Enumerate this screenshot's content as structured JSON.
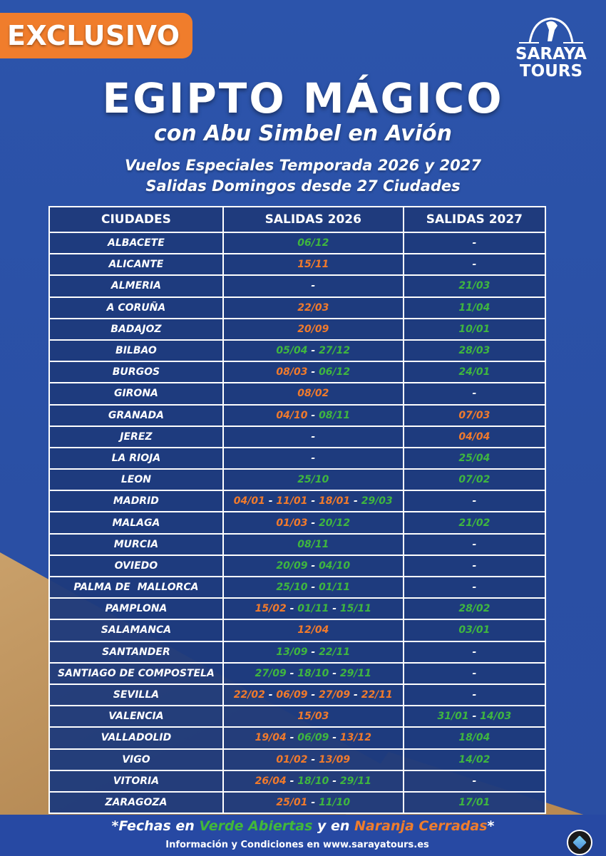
{
  "badge": "EXCLUSIVO",
  "logo": {
    "line1": "SARAYA",
    "line2": "TOURS"
  },
  "title": "EGIPTO MÁGICO",
  "subtitle": "con Abu Simbel en Avión",
  "line1": "Vuelos Especiales Temporada 2026 y 2027",
  "line2": "Salidas Domingos desde 27 Ciudades",
  "colors": {
    "open": "#3fb63f",
    "closed": "#f07a2c",
    "background": "#2a50a6",
    "table": "#1f3b7d"
  },
  "table": {
    "headers": [
      "CIUDADES",
      "SALIDAS 2026",
      "SALIDAS 2027"
    ],
    "rows": [
      {
        "city": "ALBACETE",
        "s2026": [
          [
            "06/12",
            "g"
          ]
        ],
        "s2027": []
      },
      {
        "city": "ALICANTE",
        "s2026": [
          [
            "15/11",
            "o"
          ]
        ],
        "s2027": []
      },
      {
        "city": "ALMERIA",
        "s2026": [],
        "s2027": [
          [
            "21/03",
            "g"
          ]
        ]
      },
      {
        "city": "A CORUÑA",
        "s2026": [
          [
            "22/03",
            "o"
          ]
        ],
        "s2027": [
          [
            "11/04",
            "g"
          ]
        ]
      },
      {
        "city": "BADAJOZ",
        "s2026": [
          [
            "20/09",
            "o"
          ]
        ],
        "s2027": [
          [
            "10/01",
            "g"
          ]
        ]
      },
      {
        "city": "BILBAO",
        "s2026": [
          [
            "05/04",
            "g"
          ],
          [
            "27/12",
            "g"
          ]
        ],
        "s2027": [
          [
            "28/03",
            "g"
          ]
        ]
      },
      {
        "city": "BURGOS",
        "s2026": [
          [
            "08/03",
            "o"
          ],
          [
            "06/12",
            "g"
          ]
        ],
        "s2027": [
          [
            "24/01",
            "g"
          ]
        ]
      },
      {
        "city": "GIRONA",
        "s2026": [
          [
            "08/02",
            "o"
          ]
        ],
        "s2027": []
      },
      {
        "city": "GRANADA",
        "s2026": [
          [
            "04/10",
            "o"
          ],
          [
            "08/11",
            "g"
          ]
        ],
        "s2027": [
          [
            "07/03",
            "o"
          ]
        ]
      },
      {
        "city": "JEREZ",
        "s2026": [],
        "s2027": [
          [
            "04/04",
            "o"
          ]
        ]
      },
      {
        "city": "LA RIOJA",
        "s2026": [],
        "s2027": [
          [
            "25/04",
            "g"
          ]
        ]
      },
      {
        "city": "LEON",
        "s2026": [
          [
            "25/10",
            "g"
          ]
        ],
        "s2027": [
          [
            "07/02",
            "g"
          ]
        ]
      },
      {
        "city": "MADRID",
        "s2026": [
          [
            "04/01",
            "o"
          ],
          [
            "11/01",
            "o"
          ],
          [
            "18/01",
            "o"
          ],
          [
            "29/03",
            "g"
          ]
        ],
        "s2027": []
      },
      {
        "city": "MALAGA",
        "s2026": [
          [
            "01/03",
            "o"
          ],
          [
            "20/12",
            "g"
          ]
        ],
        "s2027": [
          [
            "21/02",
            "g"
          ]
        ]
      },
      {
        "city": "MURCIA",
        "s2026": [
          [
            "08/11",
            "g"
          ]
        ],
        "s2027": []
      },
      {
        "city": "OVIEDO",
        "s2026": [
          [
            "20/09",
            "g"
          ],
          [
            "04/10",
            "g"
          ]
        ],
        "s2027": []
      },
      {
        "city": "PALMA DE  MALLORCA",
        "s2026": [
          [
            "25/10",
            "g"
          ],
          [
            "01/11",
            "g"
          ]
        ],
        "s2027": []
      },
      {
        "city": "PAMPLONA",
        "s2026": [
          [
            "15/02",
            "o"
          ],
          [
            "01/11",
            "g"
          ],
          [
            "15/11",
            "g"
          ]
        ],
        "s2027": [
          [
            "28/02",
            "g"
          ]
        ]
      },
      {
        "city": "SALAMANCA",
        "s2026": [
          [
            "12/04",
            "o"
          ]
        ],
        "s2027": [
          [
            "03/01",
            "g"
          ]
        ]
      },
      {
        "city": "SANTANDER",
        "s2026": [
          [
            "13/09",
            "g"
          ],
          [
            "22/11",
            "g"
          ]
        ],
        "s2027": []
      },
      {
        "city": "SANTIAGO DE COMPOSTELA",
        "s2026": [
          [
            "27/09",
            "g"
          ],
          [
            "18/10",
            "g"
          ],
          [
            "29/11",
            "g"
          ]
        ],
        "s2027": []
      },
      {
        "city": "SEVILLA",
        "s2026": [
          [
            "22/02",
            "o"
          ],
          [
            "06/09",
            "o"
          ],
          [
            "27/09",
            "o"
          ],
          [
            "22/11",
            "o"
          ]
        ],
        "s2027": []
      },
      {
        "city": "VALENCIA",
        "s2026": [
          [
            "15/03",
            "o"
          ]
        ],
        "s2027": [
          [
            "31/01",
            "g"
          ],
          [
            "14/03",
            "g"
          ]
        ]
      },
      {
        "city": "VALLADOLID",
        "s2026": [
          [
            "19/04",
            "o"
          ],
          [
            "06/09",
            "g"
          ],
          [
            "13/12",
            "o"
          ]
        ],
        "s2027": [
          [
            "18/04",
            "g"
          ]
        ]
      },
      {
        "city": "VIGO",
        "s2026": [
          [
            "01/02",
            "o"
          ],
          [
            "13/09",
            "o"
          ]
        ],
        "s2027": [
          [
            "14/02",
            "g"
          ]
        ]
      },
      {
        "city": "VITORIA",
        "s2026": [
          [
            "26/04",
            "o"
          ],
          [
            "18/10",
            "g"
          ],
          [
            "29/11",
            "g"
          ]
        ],
        "s2027": []
      },
      {
        "city": "ZARAGOZA",
        "s2026": [
          [
            "25/01",
            "o"
          ],
          [
            "11/10",
            "g"
          ]
        ],
        "s2027": [
          [
            "17/01",
            "g"
          ]
        ]
      }
    ],
    "empty": "-",
    "separator": "-"
  },
  "note": {
    "prefix": "*Fechas en ",
    "green": "Verde Abiertas",
    "middle": " y en ",
    "orange": "Naranja Cerradas",
    "suffix": "*"
  },
  "info": "Información y Condiciones en www.sarayatours.es"
}
